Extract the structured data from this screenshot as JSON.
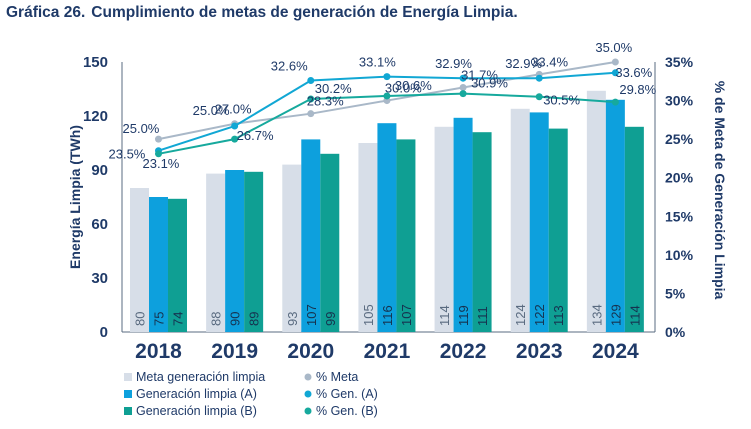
{
  "figure": {
    "number": "Gráfica 26.",
    "title": "Cumplimiento de metas de generación de Energía Limpia."
  },
  "colors": {
    "meta": "#d7dee8",
    "gen_a": "#0da0dd",
    "gen_b": "#0f9f93",
    "pct_meta": "#a9b8c8",
    "pct_a": "#11a7d4",
    "pct_b": "#16a99d",
    "text": "#1f3a68",
    "axis": "#5a6b80"
  },
  "chart_data": {
    "type": "bar",
    "categories": [
      "2018",
      "2019",
      "2020",
      "2021",
      "2022",
      "2023",
      "2024"
    ],
    "xlabel": "",
    "ylabel": "Energía Limpia (TWh)",
    "ylim": [
      0,
      150
    ],
    "yticks": [
      0,
      30,
      60,
      90,
      120,
      150
    ],
    "y2label": "% de Meta de Generación Limpia",
    "y2lim": [
      0,
      35
    ],
    "y2ticks": [
      "0%",
      "5%",
      "10%",
      "15%",
      "20%",
      "25%",
      "30%",
      "35%"
    ],
    "series": [
      {
        "name": "Meta generación limpia",
        "kind": "bar",
        "values": [
          80,
          88,
          93,
          105,
          114,
          124,
          134
        ]
      },
      {
        "name": "Generación limpia (A)",
        "kind": "bar",
        "values": [
          75,
          90,
          107,
          116,
          119,
          122,
          129
        ]
      },
      {
        "name": "Generación limpia (B)",
        "kind": "bar",
        "values": [
          74,
          89,
          99,
          107,
          111,
          113,
          114
        ]
      },
      {
        "name": "% Meta",
        "kind": "line",
        "values": [
          25.0,
          27.0,
          28.3,
          30.0,
          31.7,
          33.4,
          35.0
        ],
        "labels": [
          "25.0%",
          "27.0%",
          "28.3%",
          "30.0%",
          "31.7%",
          "33.4%",
          "35.0%"
        ]
      },
      {
        "name": "% Gen. (A)",
        "kind": "line",
        "values": [
          23.5,
          26.7,
          32.6,
          33.1,
          32.9,
          32.9,
          33.6
        ],
        "labels": [
          "23.5%",
          "26.7%",
          "32.6%",
          "33.1%",
          "32.9%",
          "32.9%",
          "33.6%"
        ]
      },
      {
        "name": "% Gen. (B)",
        "kind": "line",
        "values": [
          23.1,
          25.0,
          30.2,
          30.6,
          30.9,
          30.5,
          29.8
        ],
        "labels": [
          "23.1%",
          "25.0%",
          "30.2%",
          "30.6%",
          "30.9%",
          "30.5%",
          "29.8%"
        ]
      }
    ],
    "legend_position": "bottom-left"
  }
}
